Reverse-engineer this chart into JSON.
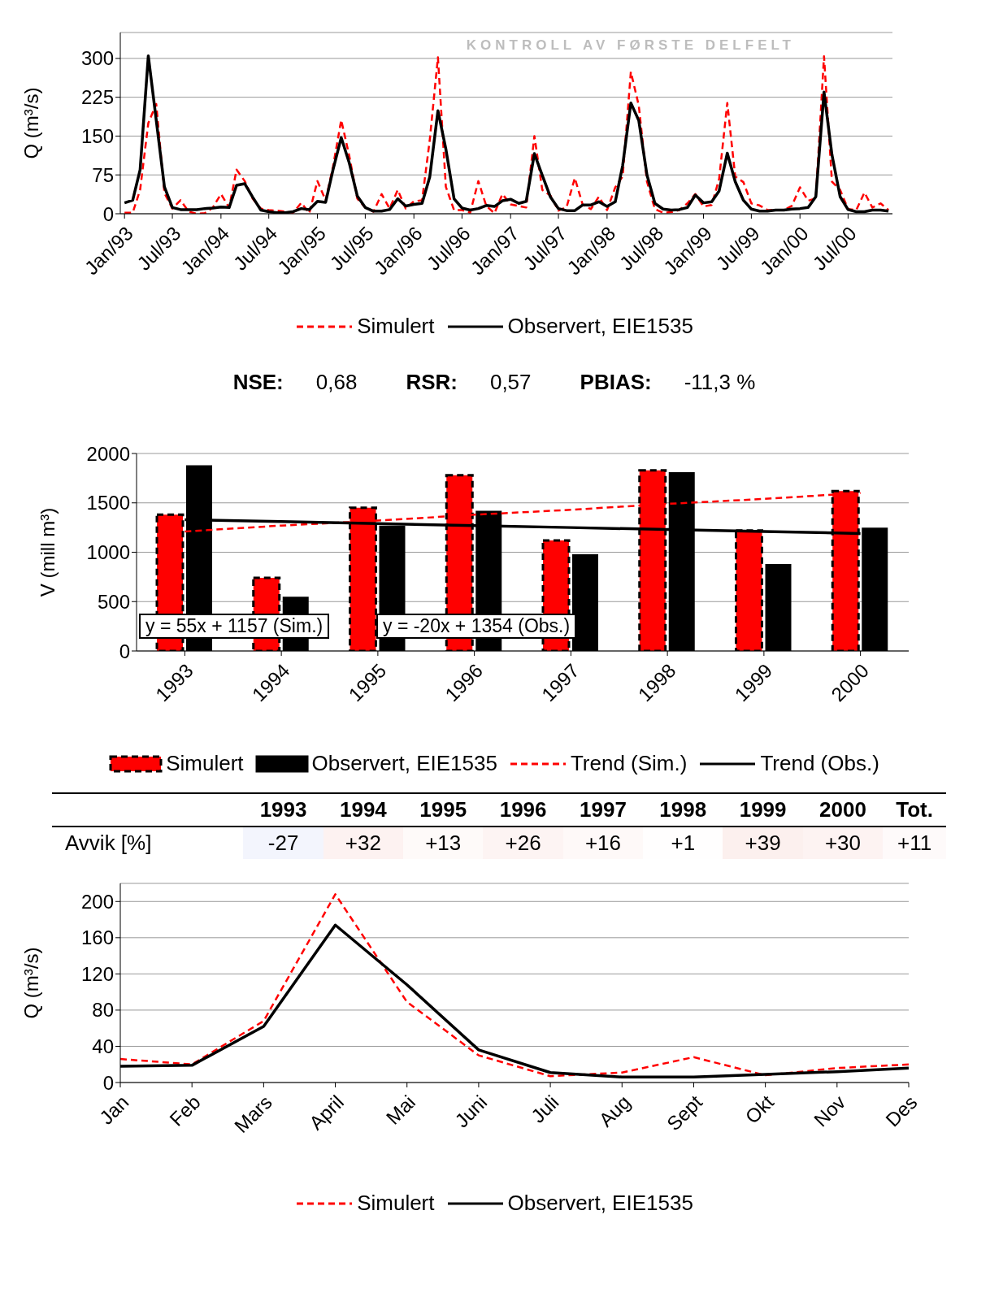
{
  "chart_data": [
    {
      "type": "line",
      "x": [
        "1993-01",
        "1993-02",
        "1993-03",
        "1993-04",
        "1993-05",
        "1993-06",
        "1993-07",
        "1993-08",
        "1993-09",
        "1993-10",
        "1993-11",
        "1993-12",
        "1994-01",
        "1994-02",
        "1994-03",
        "1994-04",
        "1994-05",
        "1994-06",
        "1994-07",
        "1994-08",
        "1994-09",
        "1994-10",
        "1994-11",
        "1994-12",
        "1995-01",
        "1995-02",
        "1995-03",
        "1995-04",
        "1995-05",
        "1995-06",
        "1995-07",
        "1995-08",
        "1995-09",
        "1995-10",
        "1995-11",
        "1995-12",
        "1996-01",
        "1996-02",
        "1996-03",
        "1996-04",
        "1996-05",
        "1996-06",
        "1996-07",
        "1996-08",
        "1996-09",
        "1996-10",
        "1996-11",
        "1996-12",
        "1997-01",
        "1997-02",
        "1997-03",
        "1997-04",
        "1997-05",
        "1997-06",
        "1997-07",
        "1997-08",
        "1997-09",
        "1997-10",
        "1997-11",
        "1997-12",
        "1998-01",
        "1998-02",
        "1998-03",
        "1998-04",
        "1998-05",
        "1998-06",
        "1998-07",
        "1998-08",
        "1998-09",
        "1998-10",
        "1998-11",
        "1998-12",
        "1999-01",
        "1999-02",
        "1999-03",
        "1999-04",
        "1999-05",
        "1999-06",
        "1999-07",
        "1999-08",
        "1999-09",
        "1999-10",
        "1999-11",
        "1999-12",
        "2000-01",
        "2000-02",
        "2000-03",
        "2000-04",
        "2000-05",
        "2000-06",
        "2000-07",
        "2000-08",
        "2000-09",
        "2000-10",
        "2000-11",
        "2000-12"
      ],
      "xlim": [
        "1992-12-16",
        "2000-12-16"
      ],
      "xticks": [
        {
          "value": "1993-01",
          "label": "Jan/93"
        },
        {
          "value": "1993-07",
          "label": "Jul/93"
        },
        {
          "value": "1994-01",
          "label": "Jan/94"
        },
        {
          "value": "1994-07",
          "label": "Jul/94"
        },
        {
          "value": "1995-01",
          "label": "Jan/95"
        },
        {
          "value": "1995-07",
          "label": "Jul/95"
        },
        {
          "value": "1996-01",
          "label": "Jan/96"
        },
        {
          "value": "1996-07",
          "label": "Jul/96"
        },
        {
          "value": "1997-01",
          "label": "Jan/97"
        },
        {
          "value": "1997-07",
          "label": "Jul/97"
        },
        {
          "value": "1998-01",
          "label": "Jan/98"
        },
        {
          "value": "1998-07",
          "label": "Jul/98"
        },
        {
          "value": "1999-01",
          "label": "Jan/99"
        },
        {
          "value": "1999-07",
          "label": "Jul/99"
        },
        {
          "value": "2000-01",
          "label": "Jan/00"
        },
        {
          "value": "2000-07",
          "label": "Jul/00"
        }
      ],
      "ylabel": "Q (m³/s)",
      "ylim": [
        0,
        350
      ],
      "yticks": [
        0,
        75,
        150,
        225,
        300
      ],
      "grid": "y",
      "legend": "bottom",
      "marker": "none",
      "series": [
        {
          "name": "Simulert",
          "color": "#ff0000",
          "line_style": "dashed",
          "values": [
            2,
            2,
            46,
            175,
            212,
            40,
            10,
            26,
            4,
            0,
            1,
            12,
            38,
            12,
            85,
            63,
            29,
            10,
            7,
            6,
            4,
            2,
            21,
            1,
            63,
            26,
            91,
            181,
            113,
            29,
            12,
            4,
            38,
            10,
            46,
            10,
            24,
            26,
            142,
            302,
            52,
            7,
            7,
            2,
            63,
            15,
            1,
            38,
            18,
            15,
            12,
            150,
            46,
            35,
            6,
            13,
            69,
            17,
            9,
            33,
            7,
            51,
            72,
            274,
            209,
            62,
            9,
            2,
            3,
            7,
            20,
            38,
            14,
            17,
            67,
            214,
            72,
            61,
            20,
            16,
            7,
            7,
            7,
            15,
            51,
            25,
            30,
            304,
            62,
            46,
            9,
            7,
            41,
            12,
            20,
            7
          ]
        },
        {
          "name": "Observert, EIE1535",
          "color": "#000000",
          "line_style": "solid",
          "values": [
            21,
            26,
            85,
            305,
            181,
            52,
            12,
            8,
            8,
            8,
            10,
            11,
            13,
            12,
            55,
            58,
            32,
            7,
            4,
            2,
            2,
            4,
            10,
            8,
            24,
            22,
            85,
            147,
            99,
            34,
            12,
            5,
            5,
            8,
            29,
            15,
            18,
            20,
            71,
            199,
            125,
            29,
            11,
            7,
            10,
            16,
            14,
            25,
            28,
            20,
            24,
            116,
            74,
            32,
            10,
            6,
            6,
            17,
            17,
            23,
            14,
            23,
            93,
            214,
            180,
            75,
            20,
            9,
            7,
            8,
            12,
            36,
            21,
            23,
            44,
            117,
            62,
            26,
            9,
            5,
            5,
            7,
            7,
            9,
            10,
            12,
            33,
            235,
            114,
            33,
            8,
            4,
            4,
            7,
            7,
            5
          ]
        }
      ],
      "annotations": [
        "KONTROLL AV FØRSTE DELFELT",
        "NSE: 0,68",
        "RSR: 0,57",
        "PBIAS: -11,3 %"
      ]
    },
    {
      "type": "bar",
      "categories": [
        "1993",
        "1994",
        "1995",
        "1996",
        "1997",
        "1998",
        "1999",
        "2000"
      ],
      "ylabel": "V (mill m³)",
      "ylim": [
        0,
        2000
      ],
      "yticks": [
        0,
        500,
        1000,
        1500,
        2000
      ],
      "grid": "y",
      "legend": "bottom",
      "marker": "none",
      "series": [
        {
          "name": "Simulert",
          "color": "#ff0000",
          "line_style": "dashed",
          "values": [
            1380,
            740,
            1450,
            1780,
            1120,
            1830,
            1220,
            1620
          ]
        },
        {
          "name": "Observert, EIE1535",
          "color": "#000000",
          "values": [
            1880,
            550,
            1270,
            1420,
            980,
            1810,
            880,
            1250
          ]
        },
        {
          "name": "Trend (Sim.)",
          "type": "line",
          "color": "#ff0000",
          "line_style": "dashed",
          "values": [
            1210,
            1270,
            1320,
            1380,
            1430,
            1490,
            1540,
            1600
          ]
        },
        {
          "name": "Trend (Obs.)",
          "type": "line",
          "color": "#000000",
          "line_style": "solid",
          "values": [
            1330,
            1310,
            1290,
            1270,
            1250,
            1230,
            1210,
            1190
          ]
        }
      ],
      "annotations": [
        "y = 55x + 1157 (Sim.)",
        "y = -20x + 1354 (Obs.)"
      ]
    },
    {
      "type": "heatmap",
      "categories": [
        "1993",
        "1994",
        "1995",
        "1996",
        "1997",
        "1998",
        "1999",
        "2000",
        "Tot."
      ],
      "y_categories": [
        "Avvik [%]"
      ],
      "cells": [
        [
          -27,
          32,
          13,
          26,
          16,
          1,
          39,
          30,
          11
        ]
      ],
      "cell_labels": [
        [
          "-27",
          "+32",
          "+13",
          "+26",
          "+16",
          "+1",
          "+39",
          "+30",
          "+11"
        ]
      ]
    },
    {
      "type": "line",
      "categories": [
        "Jan",
        "Feb",
        "Mars",
        "April",
        "Mai",
        "Juni",
        "Juli",
        "Aug",
        "Sept",
        "Okt",
        "Nov",
        "Des"
      ],
      "ylabel": "Q (m³/s)",
      "ylim": [
        0,
        220
      ],
      "yticks": [
        0,
        40,
        80,
        120,
        160,
        200
      ],
      "grid": "y",
      "legend": "bottom",
      "marker": "none",
      "series": [
        {
          "name": "Simulert",
          "color": "#ff0000",
          "line_style": "dashed",
          "values": [
            26,
            20,
            68,
            208,
            89,
            30,
            7,
            11,
            28,
            8,
            16,
            20
          ]
        },
        {
          "name": "Observert, EIE1535",
          "color": "#000000",
          "line_style": "solid",
          "values": [
            18,
            19,
            62,
            174,
            108,
            36,
            11,
            6,
            6,
            9,
            12,
            16
          ]
        }
      ]
    }
  ]
}
